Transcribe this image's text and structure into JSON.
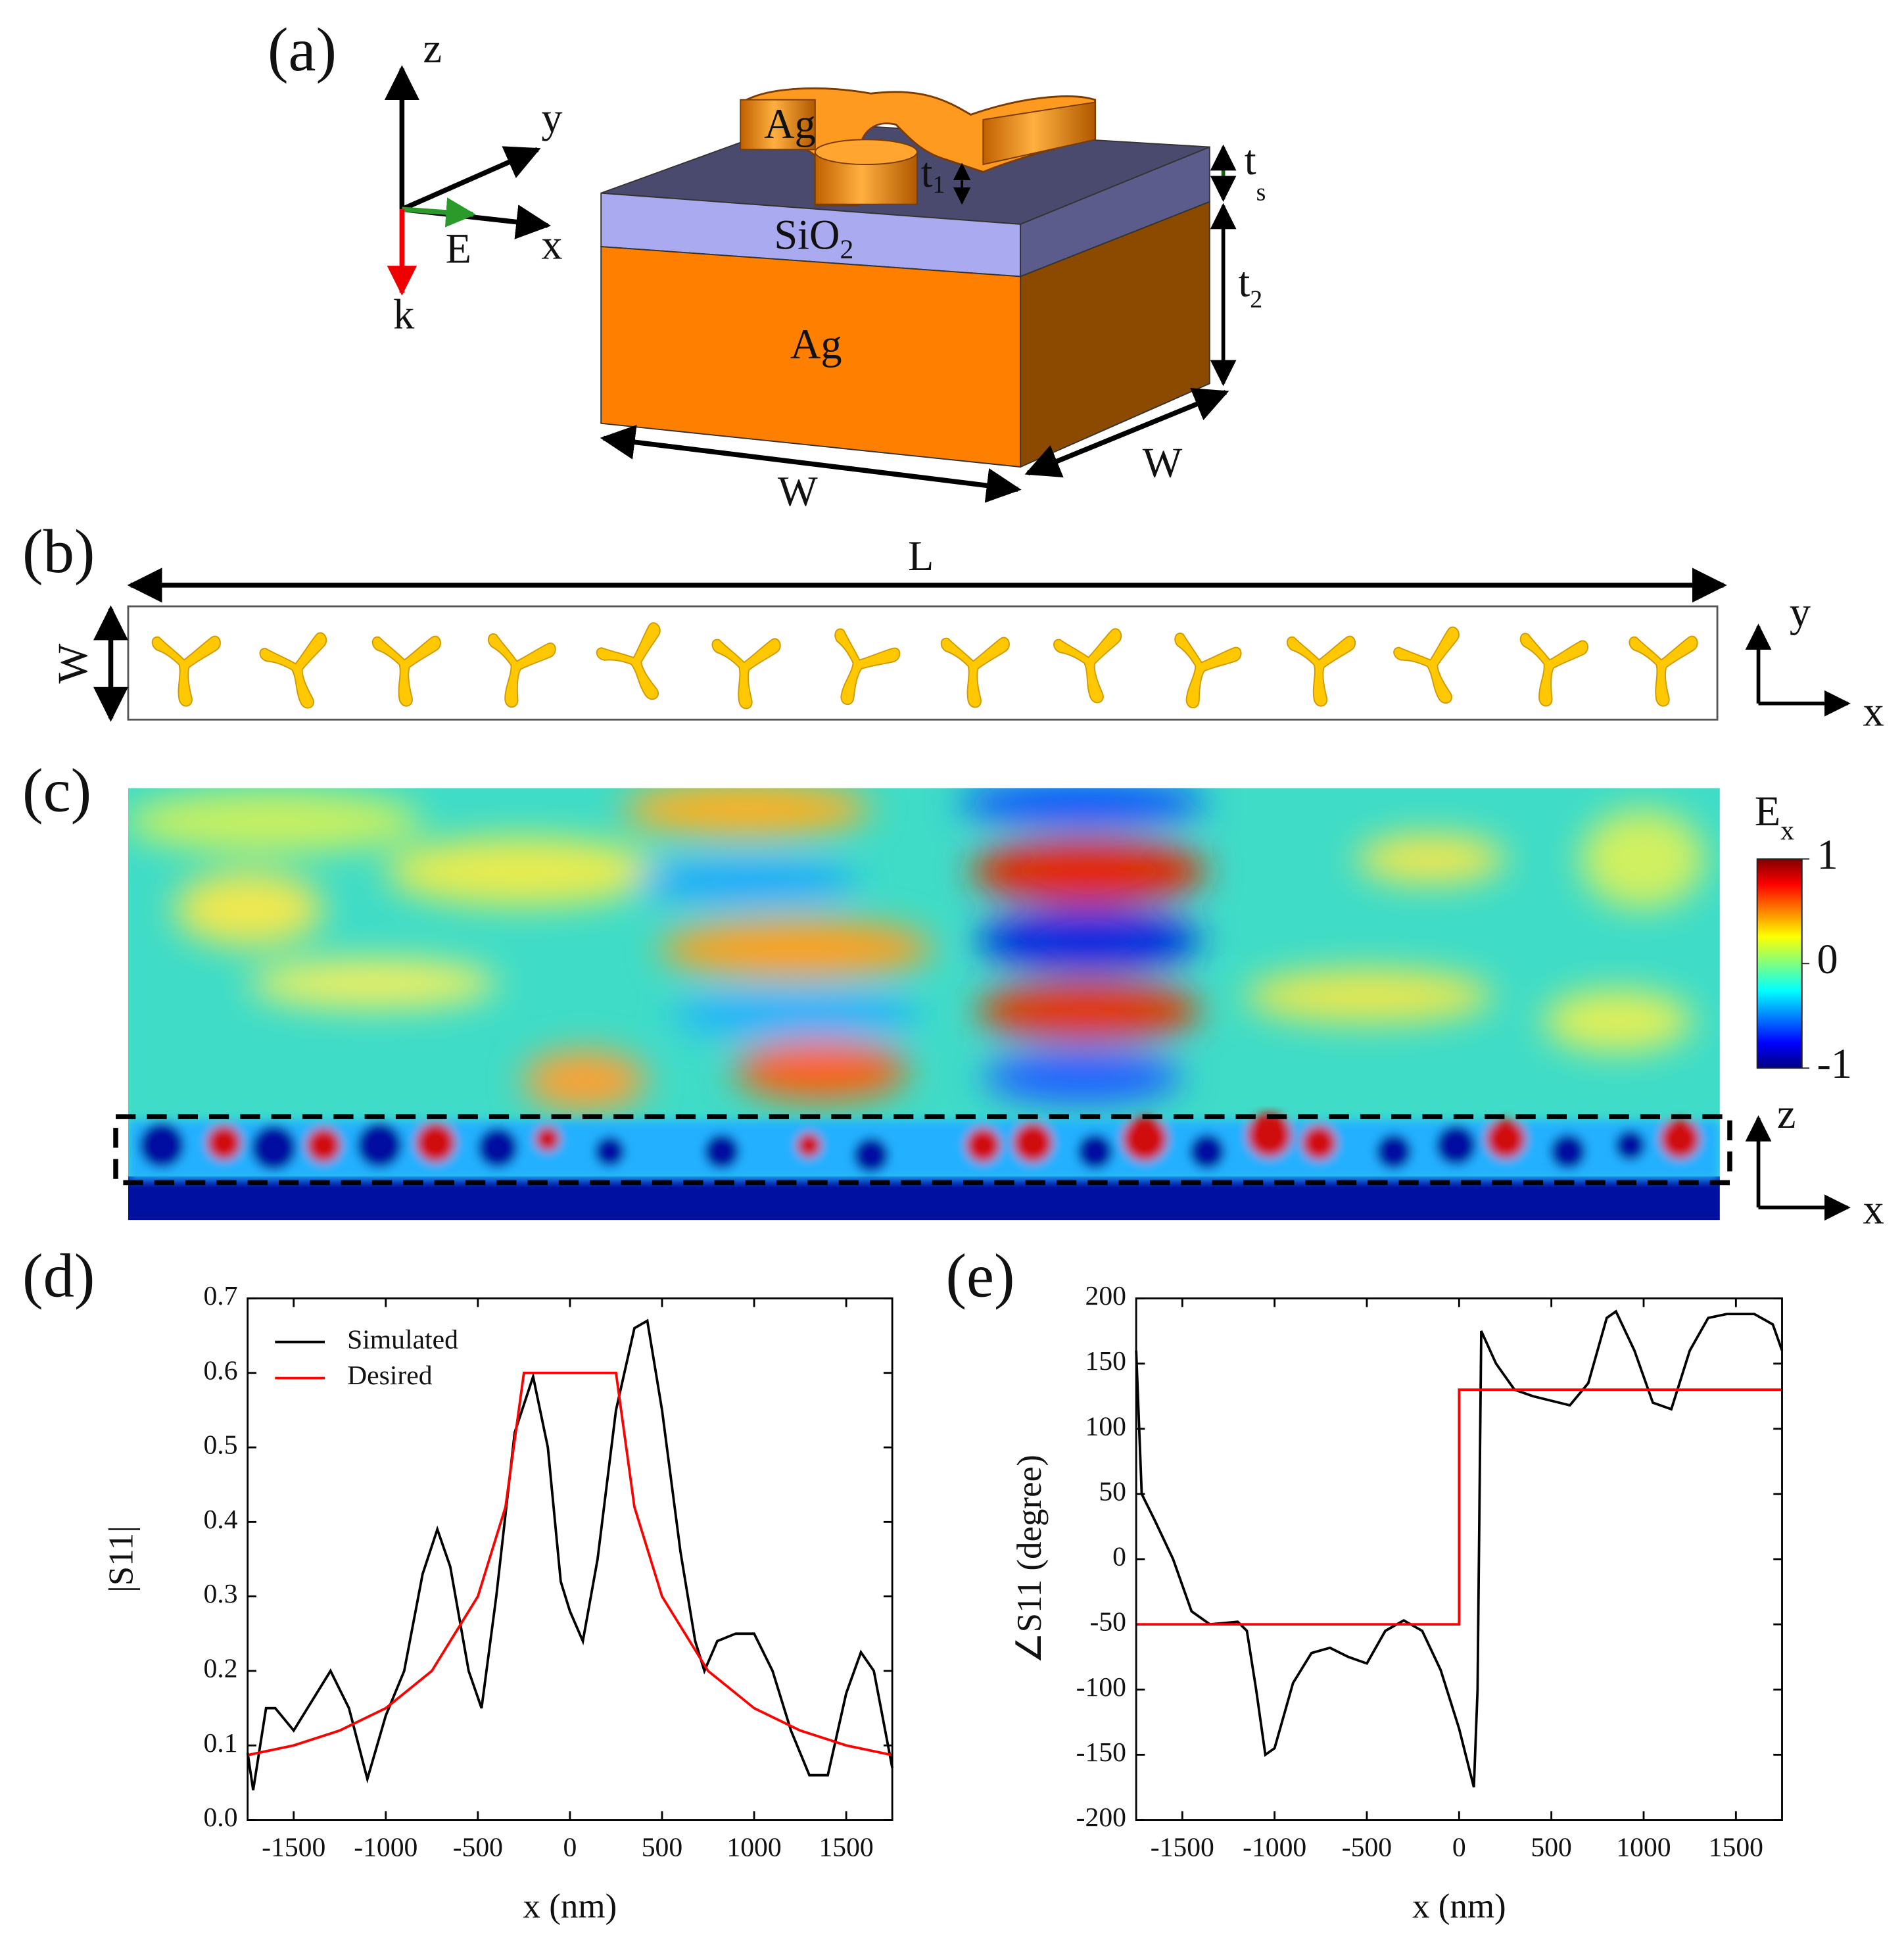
{
  "panel_labels": [
    "(a)",
    "(b)",
    "(c)",
    "(d)",
    "(e)"
  ],
  "diagram_a": {
    "axis_z": "z",
    "axis_y": "y",
    "axis_x": "x",
    "field_E": "E",
    "wave_k": "k",
    "ag_top": "Ag",
    "t1": "t",
    "t1_sub": "1",
    "sio2": "SiO",
    "sio2_sub": "2",
    "ag_base": "Ag",
    "ts": "t",
    "ts_sub": "s",
    "t2": "t",
    "t2_sub": "2",
    "w_front": "W",
    "w_side": "W"
  },
  "diagram_b": {
    "length": "L",
    "width": "W",
    "axis_y": "y",
    "axis_x": "x"
  },
  "field_c": {
    "colorbar_title": "E",
    "colorbar_sub": "x",
    "colorbar_ticks": [
      1,
      0,
      -1
    ],
    "colorbar_lim": [
      -1,
      1
    ],
    "axis_z": "z",
    "axis_x": "x"
  },
  "chart_data": [
    {
      "type": "line",
      "xlabel": "x (nm)",
      "ylabel": "|S11|",
      "xlim": [
        -1750,
        1750
      ],
      "ylim": [
        0,
        0.7
      ],
      "xticks": [
        -1500,
        -1000,
        -500,
        0,
        500,
        1000,
        1500
      ],
      "yticks": [
        {
          "value": 0,
          "label": "0.0"
        },
        0.1,
        0.2,
        0.3,
        0.4,
        0.5,
        0.6,
        0.7
      ],
      "legend": "upper left",
      "series": [
        {
          "name": "Simulated",
          "color": "#000000",
          "x": [
            -1750,
            -1720,
            -1650,
            -1600,
            -1500,
            -1400,
            -1300,
            -1200,
            -1100,
            -1000,
            -900,
            -800,
            -720,
            -650,
            -550,
            -480,
            -400,
            -300,
            -200,
            -120,
            -50,
            0,
            70,
            150,
            250,
            350,
            420,
            500,
            600,
            680,
            730,
            800,
            900,
            1000,
            1100,
            1200,
            1300,
            1400,
            1500,
            1580,
            1650,
            1750
          ],
          "values": [
            0.09,
            0.04,
            0.15,
            0.15,
            0.12,
            0.16,
            0.2,
            0.15,
            0.055,
            0.14,
            0.2,
            0.33,
            0.39,
            0.34,
            0.2,
            0.15,
            0.3,
            0.52,
            0.595,
            0.5,
            0.32,
            0.28,
            0.24,
            0.35,
            0.55,
            0.66,
            0.67,
            0.55,
            0.36,
            0.24,
            0.2,
            0.24,
            0.25,
            0.25,
            0.2,
            0.12,
            0.06,
            0.06,
            0.17,
            0.225,
            0.2,
            0.07
          ]
        },
        {
          "name": "Desired",
          "color": "#ff0000",
          "x": [
            -1750,
            -1500,
            -1250,
            -1000,
            -750,
            -500,
            -350,
            -250,
            250,
            350,
            500,
            750,
            1000,
            1250,
            1500,
            1750
          ],
          "values": [
            0.087,
            0.1,
            0.12,
            0.15,
            0.2,
            0.3,
            0.42,
            0.6,
            0.6,
            0.42,
            0.3,
            0.2,
            0.15,
            0.12,
            0.1,
            0.087
          ]
        }
      ]
    },
    {
      "type": "line",
      "xlabel": "x (nm)",
      "ylabel": "∠S11 (degree)",
      "xlim": [
        -1750,
        1750
      ],
      "ylim": [
        -200,
        200
      ],
      "xticks": [
        -1500,
        -1000,
        -500,
        0,
        500,
        1000,
        1500
      ],
      "yticks": [
        -200,
        -150,
        -100,
        -50,
        0,
        50,
        100,
        150,
        200
      ],
      "series": [
        {
          "color": "#000000",
          "x": [
            -1750,
            -1720,
            -1650,
            -1550,
            -1450,
            -1350,
            -1200,
            -1150,
            -1100,
            -1050,
            -1000,
            -900,
            -800,
            -700,
            -600,
            -500,
            -400,
            -300,
            -200,
            -100,
            0,
            80,
            100,
            120,
            200,
            300,
            400,
            600,
            700,
            800,
            850,
            950,
            1050,
            1150,
            1250,
            1350,
            1450,
            1600,
            1700,
            1750
          ],
          "values": [
            160,
            50,
            30,
            0,
            -40,
            -50,
            -48,
            -55,
            -100,
            -150,
            -145,
            -95,
            -72,
            -68,
            -75,
            -80,
            -55,
            -47,
            -55,
            -85,
            -130,
            -175,
            -100,
            175,
            150,
            130,
            125,
            118,
            135,
            185,
            190,
            160,
            120,
            115,
            160,
            185,
            188,
            188,
            180,
            160
          ]
        },
        {
          "color": "#ff0000",
          "x": [
            -1750,
            0,
            0,
            1750
          ],
          "values": [
            -50,
            -50,
            130,
            130
          ]
        }
      ]
    }
  ]
}
